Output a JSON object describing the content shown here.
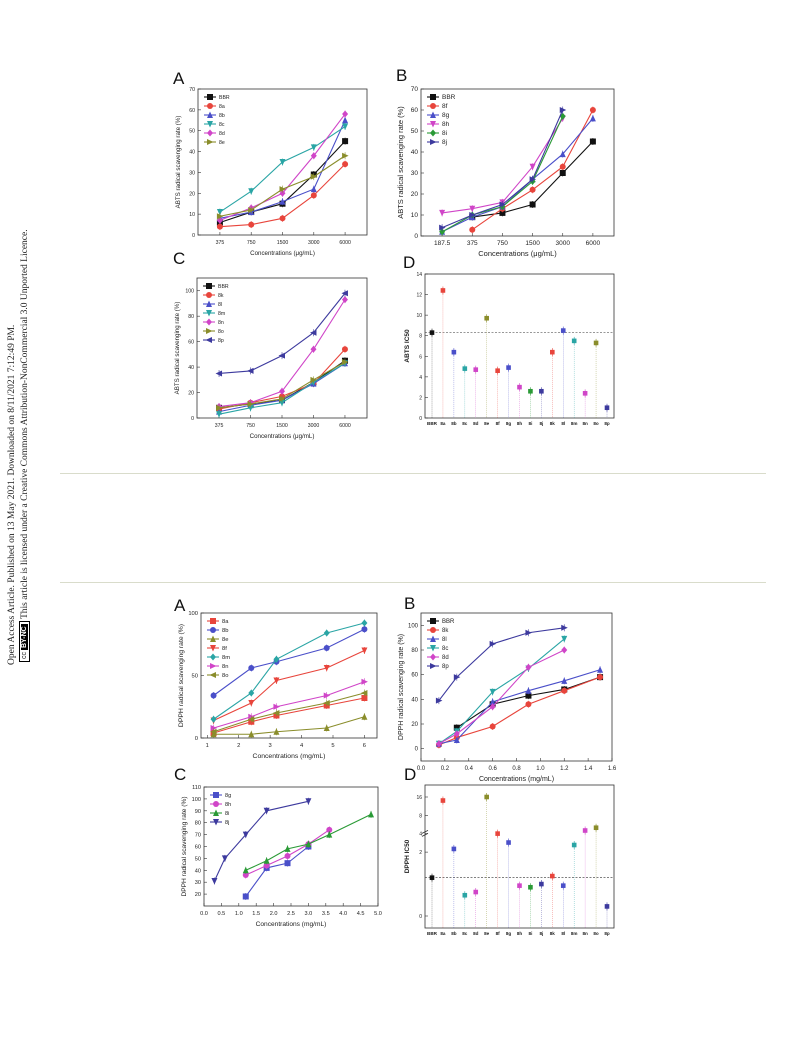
{
  "sidebar": {
    "line1": "Open Access Article. Published on 13 May 2021. Downloaded on 8/11/2021 7:12:49 PM.",
    "line2": "This article is licensed under a Creative Commons Attribution-NonCommercial 3.0 Unported Licence.",
    "badge_cc": "cc",
    "badge_type": "BY-NC"
  },
  "colors": {
    "BBR": "#111111",
    "8a": "#e8453c",
    "8b": "#4a4fc9",
    "8c": "#2aa5a5",
    "8d": "#d045c8",
    "8e": "#8a8d2b",
    "8f": "#e8453c",
    "8g": "#4a4fc9",
    "8h": "#d045c8",
    "8i": "#2a9a36",
    "8j": "#3d3a9e",
    "8k": "#e8453c",
    "8l": "#4a4fc9",
    "8m": "#2aa5a5",
    "8n": "#d045c8",
    "8o": "#8a8d2b",
    "8p": "#3d3a9e"
  },
  "chart_data": [
    {
      "panel": "A",
      "type": "line",
      "xlabel": "Concentrations (μg/mL)",
      "ylabel": "ABTS radical scavenging rate (%)",
      "categories": [
        "375",
        "750",
        "1500",
        "3000",
        "6000"
      ],
      "ylim": [
        0,
        70
      ],
      "yticks": [
        0,
        10,
        20,
        30,
        40,
        50,
        60,
        70
      ],
      "legend": "top-left",
      "series": [
        {
          "name": "BBR",
          "values": [
            6,
            11,
            15,
            29,
            45
          ]
        },
        {
          "name": "8a",
          "values": [
            4,
            5,
            8,
            19,
            34
          ]
        },
        {
          "name": "8b",
          "values": [
            8,
            11,
            16,
            22,
            55
          ]
        },
        {
          "name": "8c",
          "values": [
            11,
            21,
            35,
            42,
            52
          ]
        },
        {
          "name": "8d",
          "values": [
            7,
            13,
            20,
            38,
            58
          ]
        },
        {
          "name": "8e",
          "values": [
            9,
            12,
            22,
            28,
            38
          ]
        }
      ]
    },
    {
      "panel": "B",
      "type": "line",
      "xlabel": "Concentrations (μg/mL)",
      "ylabel": "ABTS radical scavenging rate (%)",
      "categories": [
        "187.5",
        "375",
        "750",
        "1500",
        "3000",
        "6000"
      ],
      "ylim": [
        0,
        70
      ],
      "yticks": [
        0,
        10,
        20,
        30,
        40,
        50,
        60,
        70
      ],
      "legend": "top-left",
      "series": [
        {
          "name": "BBR",
          "values": [
            null,
            9,
            11,
            15,
            30,
            45
          ]
        },
        {
          "name": "8f",
          "values": [
            null,
            3,
            13,
            22,
            33,
            60
          ]
        },
        {
          "name": "8g",
          "values": [
            2,
            9,
            14,
            27,
            39,
            56
          ]
        },
        {
          "name": "8h",
          "values": [
            11,
            13,
            16,
            33,
            56,
            null
          ]
        },
        {
          "name": "8i",
          "values": [
            2,
            10,
            14,
            26,
            57,
            null
          ]
        },
        {
          "name": "8j",
          "values": [
            4,
            10,
            15,
            27,
            60,
            null
          ]
        }
      ]
    },
    {
      "panel": "C",
      "type": "line",
      "xlabel": "Concentrations (μg/mL)",
      "ylabel": "ABTS radical scavenging rate (%)",
      "categories": [
        "375",
        "750",
        "1500",
        "3000",
        "6000"
      ],
      "ylim": [
        0,
        110
      ],
      "yticks": [
        0,
        20,
        40,
        60,
        80,
        100
      ],
      "legend": "top-left",
      "series": [
        {
          "name": "BBR",
          "values": [
            8,
            11,
            14,
            28,
            45
          ]
        },
        {
          "name": "8k",
          "values": [
            7,
            12,
            17,
            27,
            54
          ]
        },
        {
          "name": "8l",
          "values": [
            5,
            10,
            14,
            27,
            43
          ]
        },
        {
          "name": "8m",
          "values": [
            3,
            8,
            12,
            28,
            43
          ]
        },
        {
          "name": "8n",
          "values": [
            9,
            12,
            21,
            54,
            93
          ]
        },
        {
          "name": "8o",
          "values": [
            8,
            11,
            15,
            30,
            44
          ]
        },
        {
          "name": "8p",
          "values": [
            35,
            37,
            49,
            67,
            98
          ]
        }
      ]
    },
    {
      "panel": "D",
      "type": "scatter",
      "ylabel": "ABTS IC50",
      "categories": [
        "BBR",
        "8a",
        "8b",
        "8c",
        "8d",
        "8e",
        "8f",
        "8g",
        "8h",
        "8i",
        "8j",
        "8k",
        "8l",
        "8m",
        "8n",
        "8o",
        "8p"
      ],
      "values": [
        8.3,
        12.4,
        6.4,
        4.8,
        4.7,
        9.7,
        4.6,
        4.9,
        3.0,
        2.6,
        2.6,
        6.4,
        8.5,
        7.5,
        2.4,
        7.3,
        1.0
      ],
      "reference_line": 8.3,
      "ylim": [
        0,
        14
      ],
      "yticks": [
        0,
        2,
        4,
        6,
        8,
        10,
        12,
        14
      ]
    },
    {
      "panel": "A",
      "type": "line",
      "xlabel": "Concentrations (mg/mL)",
      "ylabel": "DPPH radical scavenging rate (%)",
      "x": [
        1.2,
        2.4,
        3.2,
        4.8,
        6.0
      ],
      "xlim": [
        0.8,
        6.4
      ],
      "xticks": [
        1,
        2,
        3,
        4,
        5,
        6
      ],
      "ylim": [
        0,
        100
      ],
      "yticks": [
        0,
        50,
        100
      ],
      "legend": "top-left",
      "series": [
        {
          "name": "8a",
          "values": [
            4,
            13,
            18,
            26,
            32
          ]
        },
        {
          "name": "8b",
          "values": [
            34,
            56,
            61,
            72,
            87
          ]
        },
        {
          "name": "8e",
          "values": [
            3,
            3,
            5,
            8,
            17
          ]
        },
        {
          "name": "8f",
          "values": [
            14,
            28,
            46,
            56,
            70
          ]
        },
        {
          "name": "8m",
          "values": [
            15,
            36,
            63,
            84,
            92
          ]
        },
        {
          "name": "8n",
          "values": [
            8,
            17,
            25,
            34,
            45
          ]
        },
        {
          "name": "8o",
          "values": [
            5,
            15,
            20,
            28,
            36
          ]
        }
      ]
    },
    {
      "panel": "B",
      "type": "line",
      "xlabel": "Concentrations (mg/mL)",
      "ylabel": "DPPH radical scavenging rate (%)",
      "x": [
        0.15,
        0.3,
        0.6,
        0.9,
        1.2,
        1.5
      ],
      "xlim": [
        0,
        1.6
      ],
      "xticks": [
        0.0,
        0.2,
        0.4,
        0.6,
        0.8,
        1.0,
        1.2,
        1.4,
        1.6
      ],
      "ylim": [
        -10,
        110
      ],
      "yticks": [
        0,
        20,
        40,
        60,
        80,
        100
      ],
      "legend": "top-left",
      "series": [
        {
          "name": "BBR",
          "values": [
            null,
            17,
            36,
            43,
            48,
            58
          ]
        },
        {
          "name": "8k",
          "values": [
            3,
            9,
            18,
            36,
            47,
            58
          ]
        },
        {
          "name": "8l",
          "values": [
            4,
            7,
            38,
            47,
            55,
            64
          ]
        },
        {
          "name": "8c",
          "values": [
            4,
            14,
            46,
            65,
            89,
            null
          ]
        },
        {
          "name": "8d",
          "values": [
            4,
            12,
            34,
            66,
            80,
            null
          ]
        },
        {
          "name": "8p",
          "values": [
            39,
            58,
            85,
            94,
            98,
            null
          ]
        }
      ]
    },
    {
      "panel": "C",
      "type": "line",
      "xlabel": "Concentrations (mg/mL)",
      "ylabel": "DPPH radical scavenging rate (%)",
      "xlim": [
        0.0,
        5.0
      ],
      "xticks": [
        0.0,
        0.5,
        1.0,
        1.5,
        2.0,
        2.5,
        3.0,
        3.5,
        4.0,
        4.5,
        5.0
      ],
      "ylim": [
        10,
        110
      ],
      "yticks": [
        20,
        30,
        40,
        50,
        60,
        70,
        80,
        90,
        100,
        110
      ],
      "legend": "top-left",
      "series": [
        {
          "name": "8g",
          "x": [
            1.2,
            1.8,
            2.4,
            3.0
          ],
          "values": [
            18,
            42,
            46,
            60
          ]
        },
        {
          "name": "8h",
          "x": [
            1.2,
            1.8,
            2.4,
            3.0,
            3.6
          ],
          "values": [
            36,
            44,
            52,
            62,
            74
          ]
        },
        {
          "name": "8i",
          "x": [
            1.2,
            1.8,
            2.4,
            3.0,
            3.6,
            4.8
          ],
          "values": [
            40,
            48,
            58,
            62,
            70,
            87
          ]
        },
        {
          "name": "8j",
          "x": [
            0.3,
            0.6,
            1.2,
            1.8,
            3.0
          ],
          "values": [
            31,
            50,
            70,
            90,
            98
          ]
        }
      ]
    },
    {
      "panel": "D",
      "type": "scatter",
      "ylabel": "DPPH IC50",
      "categories": [
        "BBR",
        "8a",
        "8b",
        "8c",
        "8d",
        "8e",
        "8f",
        "8g",
        "8h",
        "8i",
        "8j",
        "8k",
        "8l",
        "8m",
        "8n",
        "8o",
        "8p"
      ],
      "values": [
        1.2,
        14,
        2.1,
        0.65,
        0.75,
        16,
        4,
        2.3,
        0.95,
        0.9,
        1.0,
        1.25,
        0.95,
        2.6,
        4.5,
        5,
        0.3
      ],
      "reference_line": 1.2,
      "yticks": [
        0,
        2,
        4,
        8,
        16
      ],
      "note": "broken axis (0-2 and 4-16)"
    }
  ]
}
